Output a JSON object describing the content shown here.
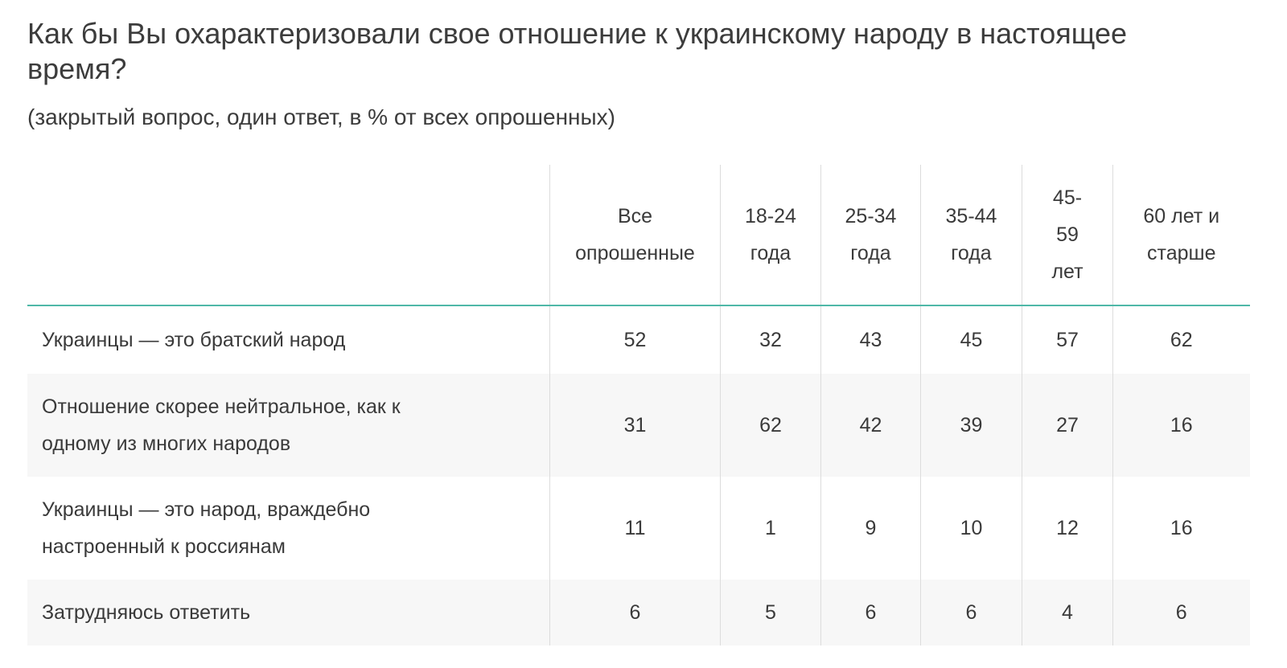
{
  "title": "Как бы Вы охарактеризовали свое отношение к украинскому народу в настоящее время?",
  "subtitle": "(закрытый вопрос, один ответ, в % от всех опрошенных)",
  "table": {
    "headers": [
      "",
      "Все опрошенные",
      "18-24 года",
      "25-34 года",
      "35-44 года",
      "45-59 лет",
      "60 лет и старше"
    ],
    "rows": [
      {
        "label": "Украинцы — это братский народ",
        "values": [
          "52",
          "32",
          "43",
          "45",
          "57",
          "62"
        ]
      },
      {
        "label": "Отношение скорее нейтральное, как к одному из многих народов",
        "values": [
          "31",
          "62",
          "42",
          "39",
          "27",
          "16"
        ]
      },
      {
        "label": "Украинцы — это народ, враждебно настроенный к россиянам",
        "values": [
          "11",
          "1",
          "9",
          "10",
          "12",
          "16"
        ]
      },
      {
        "label": "Затрудняюсь ответить",
        "values": [
          "6",
          "5",
          "6",
          "6",
          "4",
          "6"
        ]
      }
    ]
  },
  "colors": {
    "accent_line": "#4fb8a8",
    "alt_row": "#f7f7f7"
  }
}
